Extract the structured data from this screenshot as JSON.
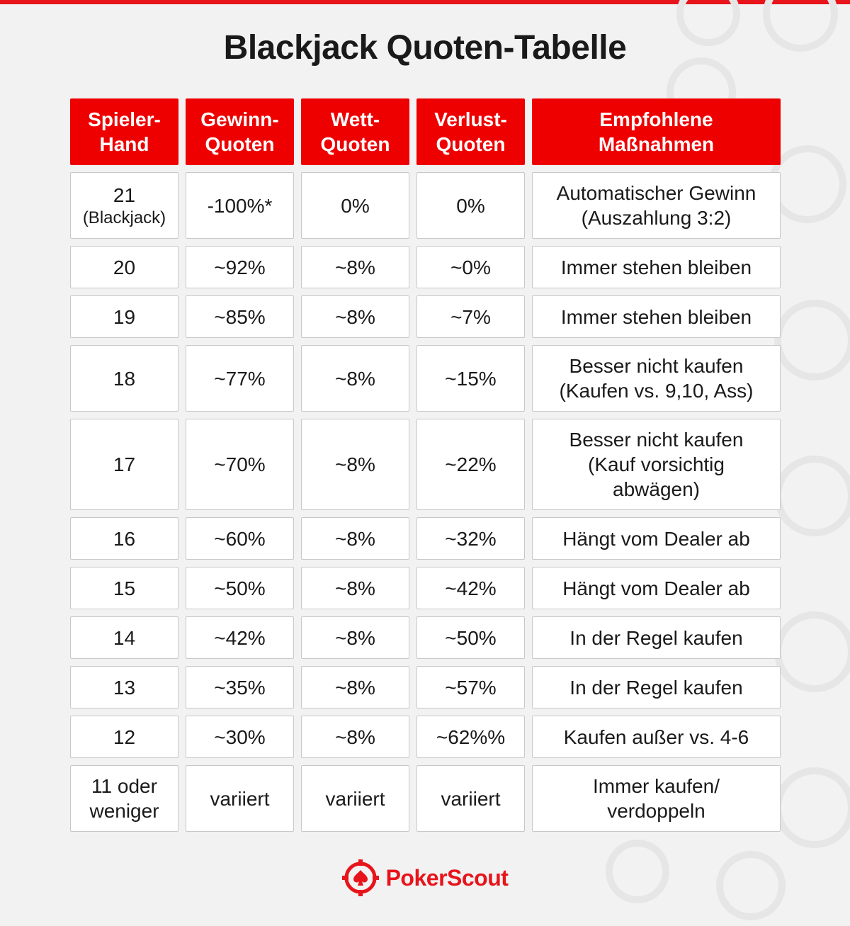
{
  "title": "Blackjack Quoten-Tabelle",
  "colors": {
    "accent": "#ee0000",
    "cell_bg": "#ffffff",
    "page_bg": "#f2f2f2"
  },
  "table": {
    "headers": [
      "Spieler-\nHand",
      "Gewinn-\nQuoten",
      "Wett-\nQuoten",
      "Verlust-\nQuoten",
      "Empfohlene\nMaßnahmen"
    ],
    "rows": [
      {
        "hand": "21",
        "hand_sub": "(Blackjack)",
        "win": "-100%*",
        "bet": "0%",
        "loss": "0%",
        "action": "Automatischer Gewinn\n(Auszahlung 3:2)"
      },
      {
        "hand": "20",
        "hand_sub": "",
        "win": "~92%",
        "bet": "~8%",
        "loss": "~0%",
        "action": "Immer stehen bleiben"
      },
      {
        "hand": "19",
        "hand_sub": "",
        "win": "~85%",
        "bet": "~8%",
        "loss": "~7%",
        "action": "Immer stehen bleiben"
      },
      {
        "hand": "18",
        "hand_sub": "",
        "win": "~77%",
        "bet": "~8%",
        "loss": "~15%",
        "action": "Besser nicht kaufen\n(Kaufen vs. 9,10, Ass)"
      },
      {
        "hand": "17",
        "hand_sub": "",
        "win": "~70%",
        "bet": "~8%",
        "loss": "~22%",
        "action": "Besser nicht kaufen\n(Kauf vorsichtig\nabwägen)"
      },
      {
        "hand": "16",
        "hand_sub": "",
        "win": "~60%",
        "bet": "~8%",
        "loss": "~32%",
        "action": "Hängt vom Dealer ab"
      },
      {
        "hand": "15",
        "hand_sub": "",
        "win": "~50%",
        "bet": "~8%",
        "loss": "~42%",
        "action": "Hängt vom Dealer ab"
      },
      {
        "hand": "14",
        "hand_sub": "",
        "win": "~42%",
        "bet": "~8%",
        "loss": "~50%",
        "action": "In der Regel kaufen"
      },
      {
        "hand": "13",
        "hand_sub": "",
        "win": "~35%",
        "bet": "~8%",
        "loss": "~57%",
        "action": "In der Regel kaufen"
      },
      {
        "hand": "12",
        "hand_sub": "",
        "win": "~30%",
        "bet": "~8%",
        "loss": "~62%%",
        "action": "Kaufen außer vs. 4-6"
      },
      {
        "hand": "11 oder\nweniger",
        "hand_sub": "",
        "win": "variiert",
        "bet": "variiert",
        "loss": "variiert",
        "action": "Immer kaufen/\nverdoppeln"
      }
    ]
  },
  "logo": {
    "text": "PokerScout",
    "icon": "pokerscout-spade-chip-icon"
  }
}
